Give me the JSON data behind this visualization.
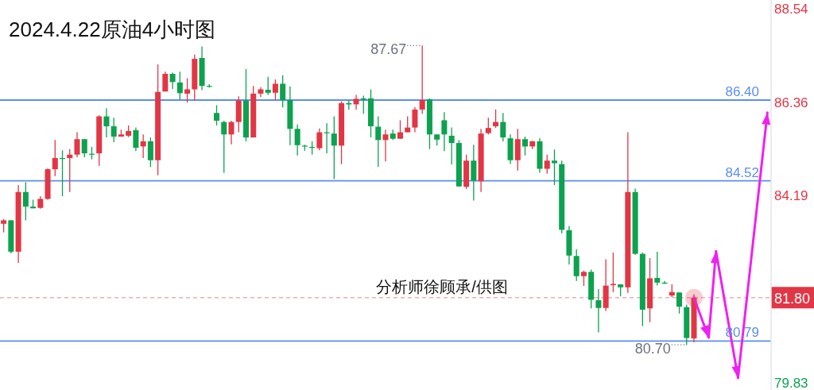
{
  "chart_data": {
    "type": "candlestick",
    "title": "2024.4.22原油4小时图",
    "categories": [
      null,
      null,
      null,
      null,
      null,
      null,
      null,
      null,
      null,
      null,
      null,
      null,
      null,
      null,
      null,
      null,
      null,
      null,
      null,
      null,
      null,
      null,
      null,
      null,
      null,
      null,
      null,
      null,
      null,
      null,
      null,
      null,
      null,
      null,
      null,
      null,
      null,
      null,
      null,
      null,
      null,
      null,
      null,
      null,
      null,
      null,
      null,
      null,
      null,
      null,
      null,
      null,
      null,
      null,
      null,
      null,
      null,
      null,
      null,
      null,
      null,
      null,
      null,
      null,
      null,
      null,
      null,
      null,
      null,
      null,
      null,
      null,
      null,
      null,
      null,
      null,
      null,
      null,
      null,
      null,
      null,
      null,
      null,
      null,
      null,
      null,
      null,
      null,
      null,
      null,
      null,
      null,
      null,
      null,
      null,
      null,
      null,
      null,
      null,
      null,
      null,
      null,
      null,
      null,
      null
    ],
    "series": [
      {
        "ohlc": [
          [
            83.52,
            83.63,
            83.32,
            83.6
          ],
          [
            83.6,
            83.61,
            82.83,
            82.87
          ],
          [
            82.87,
            84.42,
            82.61,
            84.26
          ],
          [
            84.26,
            84.49,
            83.6,
            83.92
          ],
          [
            83.92,
            84.08,
            83.88,
            83.88
          ],
          [
            83.89,
            84.16,
            83.87,
            84.1
          ],
          [
            84.1,
            84.81,
            84.08,
            84.79
          ],
          [
            84.79,
            85.47,
            84.63,
            85.05
          ],
          [
            85.05,
            85.23,
            84.16,
            85.03
          ],
          [
            85.05,
            85.26,
            84.26,
            85.13
          ],
          [
            85.13,
            85.65,
            85.07,
            85.49
          ],
          [
            85.49,
            85.49,
            85.07,
            85.16
          ],
          [
            85.15,
            85.31,
            85.02,
            85.13
          ],
          [
            85.16,
            86.05,
            84.87,
            86.02
          ],
          [
            86.02,
            86.21,
            85.53,
            85.79
          ],
          [
            85.79,
            85.99,
            85.42,
            85.55
          ],
          [
            85.55,
            85.71,
            85.55,
            85.6
          ],
          [
            85.57,
            85.81,
            85.54,
            85.68
          ],
          [
            85.7,
            85.76,
            85.21,
            85.29
          ],
          [
            85.32,
            85.6,
            85.05,
            85.44
          ],
          [
            85.44,
            85.53,
            84.84,
            85.0
          ],
          [
            85.0,
            87.23,
            84.65,
            86.59
          ],
          [
            86.6,
            87.06,
            86.6,
            87.01
          ],
          [
            87.01,
            87.04,
            86.66,
            86.82
          ],
          [
            86.81,
            87.06,
            86.41,
            86.56
          ],
          [
            86.55,
            86.91,
            86.34,
            86.65
          ],
          [
            86.65,
            87.46,
            86.4,
            87.36
          ],
          [
            87.38,
            87.65,
            86.63,
            86.73
          ],
          [
            86.73,
            86.77,
            86.69,
            86.71
          ],
          [
            86.1,
            86.28,
            85.81,
            85.92
          ],
          [
            85.89,
            85.92,
            84.71,
            85.6
          ],
          [
            85.6,
            85.92,
            85.37,
            85.89
          ],
          [
            85.89,
            86.49,
            85.65,
            86.39
          ],
          [
            86.39,
            87.12,
            85.44,
            85.53
          ],
          [
            85.53,
            86.73,
            85.53,
            86.55
          ],
          [
            86.55,
            86.7,
            86.47,
            86.65
          ],
          [
            86.64,
            86.94,
            86.52,
            86.57
          ],
          [
            86.57,
            86.88,
            86.4,
            86.78
          ],
          [
            86.78,
            86.98,
            86.23,
            86.4
          ],
          [
            86.4,
            86.72,
            85.35,
            85.73
          ],
          [
            85.73,
            85.83,
            85.11,
            85.35
          ],
          [
            85.34,
            85.36,
            85.22,
            85.32
          ],
          [
            85.31,
            85.44,
            85.13,
            85.29
          ],
          [
            85.28,
            85.74,
            85.23,
            85.65
          ],
          [
            85.65,
            85.86,
            85.16,
            85.63
          ],
          [
            85.62,
            86.02,
            84.56,
            85.34
          ],
          [
            85.34,
            86.37,
            84.91,
            86.33
          ],
          [
            86.33,
            86.4,
            86.18,
            86.3
          ],
          [
            86.3,
            86.52,
            86.18,
            86.43
          ],
          [
            86.44,
            86.5,
            86.08,
            86.41
          ],
          [
            86.44,
            86.65,
            85.53,
            85.79
          ],
          [
            85.78,
            86.02,
            84.84,
            85.47
          ],
          [
            85.47,
            85.71,
            84.97,
            85.6
          ],
          [
            85.62,
            85.71,
            85.47,
            85.5
          ],
          [
            85.5,
            85.93,
            85.5,
            85.65
          ],
          [
            85.65,
            86.02,
            85.65,
            85.76
          ],
          [
            85.76,
            86.24,
            85.65,
            86.18
          ],
          [
            86.18,
            87.67,
            86.08,
            86.4
          ],
          [
            86.42,
            86.44,
            85.26,
            85.6
          ],
          [
            85.6,
            85.6,
            85.34,
            85.48
          ],
          [
            85.93,
            86.12,
            85.21,
            85.6
          ],
          [
            85.57,
            85.76,
            84.9,
            85.4
          ],
          [
            85.4,
            85.47,
            84.38,
            84.39
          ],
          [
            84.38,
            85.13,
            84.33,
            84.99
          ],
          [
            84.99,
            85.36,
            84.06,
            84.52
          ],
          [
            84.51,
            85.73,
            84.26,
            85.62
          ],
          [
            85.63,
            85.99,
            85.6,
            85.75
          ],
          [
            85.79,
            86.18,
            85.75,
            85.89
          ],
          [
            85.89,
            86.1,
            85.44,
            85.53
          ],
          [
            85.51,
            85.6,
            84.91,
            85.0
          ],
          [
            85.0,
            85.73,
            84.76,
            85.49
          ],
          [
            85.49,
            85.55,
            85.11,
            85.32
          ],
          [
            85.32,
            85.45,
            85.26,
            85.44
          ],
          [
            85.44,
            85.51,
            84.71,
            84.8
          ],
          [
            84.8,
            85.13,
            84.69,
            84.99
          ],
          [
            84.99,
            85.25,
            84.42,
            84.93
          ],
          [
            84.91,
            84.99,
            83.3,
            83.38
          ],
          [
            83.37,
            83.47,
            82.57,
            82.78
          ],
          [
            82.77,
            82.93,
            82.19,
            82.3
          ],
          [
            82.3,
            82.43,
            82.07,
            82.4
          ],
          [
            82.4,
            82.45,
            81.55,
            81.75
          ],
          [
            81.74,
            82.0,
            80.99,
            81.56
          ],
          [
            81.56,
            82.69,
            81.49,
            82.08
          ],
          [
            82.09,
            82.85,
            81.93,
            82.12
          ],
          [
            82.11,
            82.11,
            81.83,
            82.04
          ],
          [
            82.04,
            85.65,
            81.91,
            84.26
          ],
          [
            84.26,
            84.34,
            82.8,
            82.82
          ],
          [
            82.82,
            82.85,
            81.14,
            81.52
          ],
          [
            81.55,
            82.72,
            81.23,
            82.25
          ],
          [
            82.26,
            82.87,
            82.08,
            82.15
          ],
          [
            82.15,
            82.19,
            82.12,
            82.13
          ],
          [
            81.85,
            82.11,
            81.81,
            81.93
          ],
          [
            81.92,
            81.92,
            81.43,
            81.59
          ],
          [
            81.58,
            81.64,
            80.7,
            80.86
          ],
          [
            80.85,
            81.88,
            80.76,
            81.8
          ],
          null,
          null,
          null,
          null,
          null,
          null,
          null,
          null,
          null,
          null
        ],
        "colors": [
          "#e23645",
          "#0ca24f",
          "#e23645",
          "#0ca24f",
          "#0ca24f",
          "#e23645",
          "#e23645",
          "#e23645",
          "#0ca24f",
          "#e23645",
          "#e23645",
          "#0ca24f",
          "#0ca24f",
          "#e23645",
          "#0ca24f",
          "#0ca24f",
          "#e23645",
          "#e23645",
          "#0ca24f",
          "#e23645",
          "#0ca24f",
          "#e23645",
          "#e23645",
          "#0ca24f",
          "#0ca24f",
          "#e23645",
          "#e23645",
          "#0ca24f",
          "#0ca24f",
          "#0ca24f",
          "#0ca24f",
          "#e23645",
          "#e23645",
          "#0ca24f",
          "#e23645",
          "#e23645",
          "#0ca24f",
          "#e23645",
          "#0ca24f",
          "#0ca24f",
          "#0ca24f",
          "#0ca24f",
          "#0ca24f",
          "#e23645",
          "#0ca24f",
          "#0ca24f",
          "#e23645",
          "#0ca24f",
          "#e23645",
          "#0ca24f",
          "#0ca24f",
          "#0ca24f",
          "#e23645",
          "#0ca24f",
          "#e23645",
          "#e23645",
          "#e23645",
          "#e23645",
          "#0ca24f",
          "#0ca24f",
          "#0ca24f",
          "#0ca24f",
          "#0ca24f",
          "#e23645",
          "#0ca24f",
          "#e23645",
          "#e23645",
          "#e23645",
          "#0ca24f",
          "#0ca24f",
          "#e23645",
          "#0ca24f",
          "#e23645",
          "#0ca24f",
          "#e23645",
          "#0ca24f",
          "#0ca24f",
          "#0ca24f",
          "#0ca24f",
          "#e23645",
          "#0ca24f",
          "#0ca24f",
          "#e23645",
          "#e23645",
          "#0ca24f",
          "#e23645",
          "#0ca24f",
          "#0ca24f",
          "#e23645",
          "#0ca24f",
          "#0ca24f",
          "#e23645",
          "#0ca24f",
          "#0ca24f",
          "#e23645",
          null,
          null,
          null,
          null,
          null,
          null,
          null,
          null,
          null,
          null
        ]
      },
      {
        "type": "line",
        "color": "#f020f0",
        "values": [
          null,
          null,
          null,
          null,
          null,
          null,
          null,
          null,
          null,
          null,
          null,
          null,
          null,
          null,
          null,
          null,
          null,
          null,
          null,
          null,
          null,
          null,
          null,
          null,
          null,
          null,
          null,
          null,
          null,
          null,
          null,
          null,
          null,
          null,
          null,
          null,
          null,
          null,
          null,
          null,
          null,
          null,
          null,
          null,
          null,
          null,
          null,
          null,
          null,
          null,
          null,
          null,
          null,
          null,
          null,
          null,
          null,
          null,
          null,
          null,
          null,
          null,
          null,
          null,
          null,
          null,
          null,
          null,
          null,
          null,
          null,
          null,
          null,
          null,
          null,
          null,
          null,
          null,
          null,
          null,
          null,
          null,
          null,
          null,
          null,
          null,
          null,
          null,
          null,
          null,
          null,
          null,
          null,
          null,
          81.8,
          null,
          80.87,
          82.88,
          null,
          null,
          79.93,
          null,
          null,
          null,
          86.11
        ]
      }
    ],
    "ylim": [
      79.65,
      88.73
    ],
    "yticks": [
      88.54,
      86.36,
      84.19,
      79.83
    ],
    "tick_labels": "y",
    "ref_lines": [
      {
        "axis": "y",
        "value": 86.4,
        "label": "86.40",
        "color": "#5b8ff0",
        "line_style": "solid"
      },
      {
        "axis": "y",
        "value": 84.52,
        "label": "84.52",
        "color": "#5b8ff0",
        "line_style": "solid"
      },
      {
        "axis": "y",
        "value": 80.79,
        "label": "80.79",
        "color": "#5b8ff0",
        "line_style": "solid"
      },
      {
        "axis": "y",
        "value": 81.8,
        "label": "81.80",
        "color": "#f2adb0",
        "line_style": "dashed"
      }
    ],
    "annotations": [
      "87.67",
      "80.70",
      "分析师徐顾承/供图"
    ]
  }
}
